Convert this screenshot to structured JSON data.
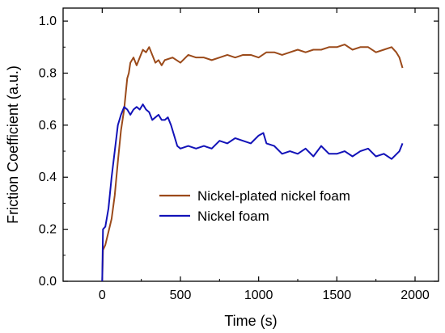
{
  "chart_data": {
    "type": "line",
    "xlabel": "Time (s)",
    "ylabel": "Friction Coefficient (a.u.)",
    "xlim": [
      -250,
      2150
    ],
    "ylim": [
      0,
      1.05
    ],
    "xticks": [
      0,
      500,
      1000,
      1500,
      2000
    ],
    "yticks": [
      0.0,
      0.2,
      0.4,
      0.6,
      0.8,
      1.0
    ],
    "xtick_labels": [
      "0",
      "500",
      "1000",
      "1500",
      "2000"
    ],
    "ytick_labels": [
      "0.0",
      "0.2",
      "0.4",
      "0.6",
      "0.8",
      "1.0"
    ],
    "grid": false,
    "legend_position": "center-right",
    "series": [
      {
        "name": "Nickel-plated nickel foam",
        "color": "#9B4A1A",
        "x": [
          0,
          5,
          20,
          40,
          60,
          80,
          100,
          120,
          140,
          150,
          160,
          170,
          180,
          200,
          220,
          240,
          260,
          280,
          300,
          320,
          340,
          360,
          380,
          400,
          450,
          500,
          550,
          600,
          650,
          700,
          750,
          800,
          850,
          900,
          950,
          1000,
          1050,
          1100,
          1150,
          1200,
          1250,
          1300,
          1350,
          1400,
          1450,
          1500,
          1550,
          1600,
          1650,
          1700,
          1750,
          1800,
          1850,
          1880,
          1900,
          1920
        ],
        "y": [
          0.0,
          0.12,
          0.14,
          0.19,
          0.24,
          0.33,
          0.46,
          0.58,
          0.66,
          0.72,
          0.78,
          0.8,
          0.84,
          0.86,
          0.83,
          0.86,
          0.89,
          0.88,
          0.9,
          0.87,
          0.84,
          0.85,
          0.83,
          0.85,
          0.86,
          0.84,
          0.87,
          0.86,
          0.86,
          0.85,
          0.86,
          0.87,
          0.86,
          0.87,
          0.87,
          0.86,
          0.88,
          0.88,
          0.87,
          0.88,
          0.89,
          0.88,
          0.89,
          0.89,
          0.9,
          0.9,
          0.91,
          0.89,
          0.9,
          0.9,
          0.88,
          0.89,
          0.9,
          0.88,
          0.86,
          0.82
        ]
      },
      {
        "name": "Nickel foam",
        "color": "#1212B8",
        "x": [
          0,
          5,
          20,
          40,
          60,
          80,
          100,
          120,
          140,
          160,
          180,
          200,
          220,
          240,
          260,
          280,
          300,
          320,
          340,
          360,
          380,
          400,
          420,
          440,
          460,
          480,
          500,
          550,
          600,
          650,
          700,
          750,
          800,
          850,
          900,
          950,
          1000,
          1030,
          1050,
          1100,
          1150,
          1200,
          1250,
          1300,
          1350,
          1400,
          1450,
          1500,
          1550,
          1600,
          1650,
          1700,
          1750,
          1800,
          1850,
          1900,
          1920
        ],
        "y": [
          0.0,
          0.2,
          0.21,
          0.28,
          0.4,
          0.5,
          0.6,
          0.64,
          0.67,
          0.66,
          0.64,
          0.66,
          0.67,
          0.66,
          0.68,
          0.66,
          0.65,
          0.62,
          0.63,
          0.64,
          0.62,
          0.62,
          0.63,
          0.6,
          0.56,
          0.52,
          0.51,
          0.52,
          0.51,
          0.52,
          0.51,
          0.54,
          0.53,
          0.55,
          0.54,
          0.53,
          0.56,
          0.57,
          0.53,
          0.52,
          0.49,
          0.5,
          0.49,
          0.51,
          0.48,
          0.52,
          0.49,
          0.49,
          0.5,
          0.48,
          0.5,
          0.51,
          0.48,
          0.49,
          0.47,
          0.5,
          0.53
        ]
      }
    ]
  }
}
